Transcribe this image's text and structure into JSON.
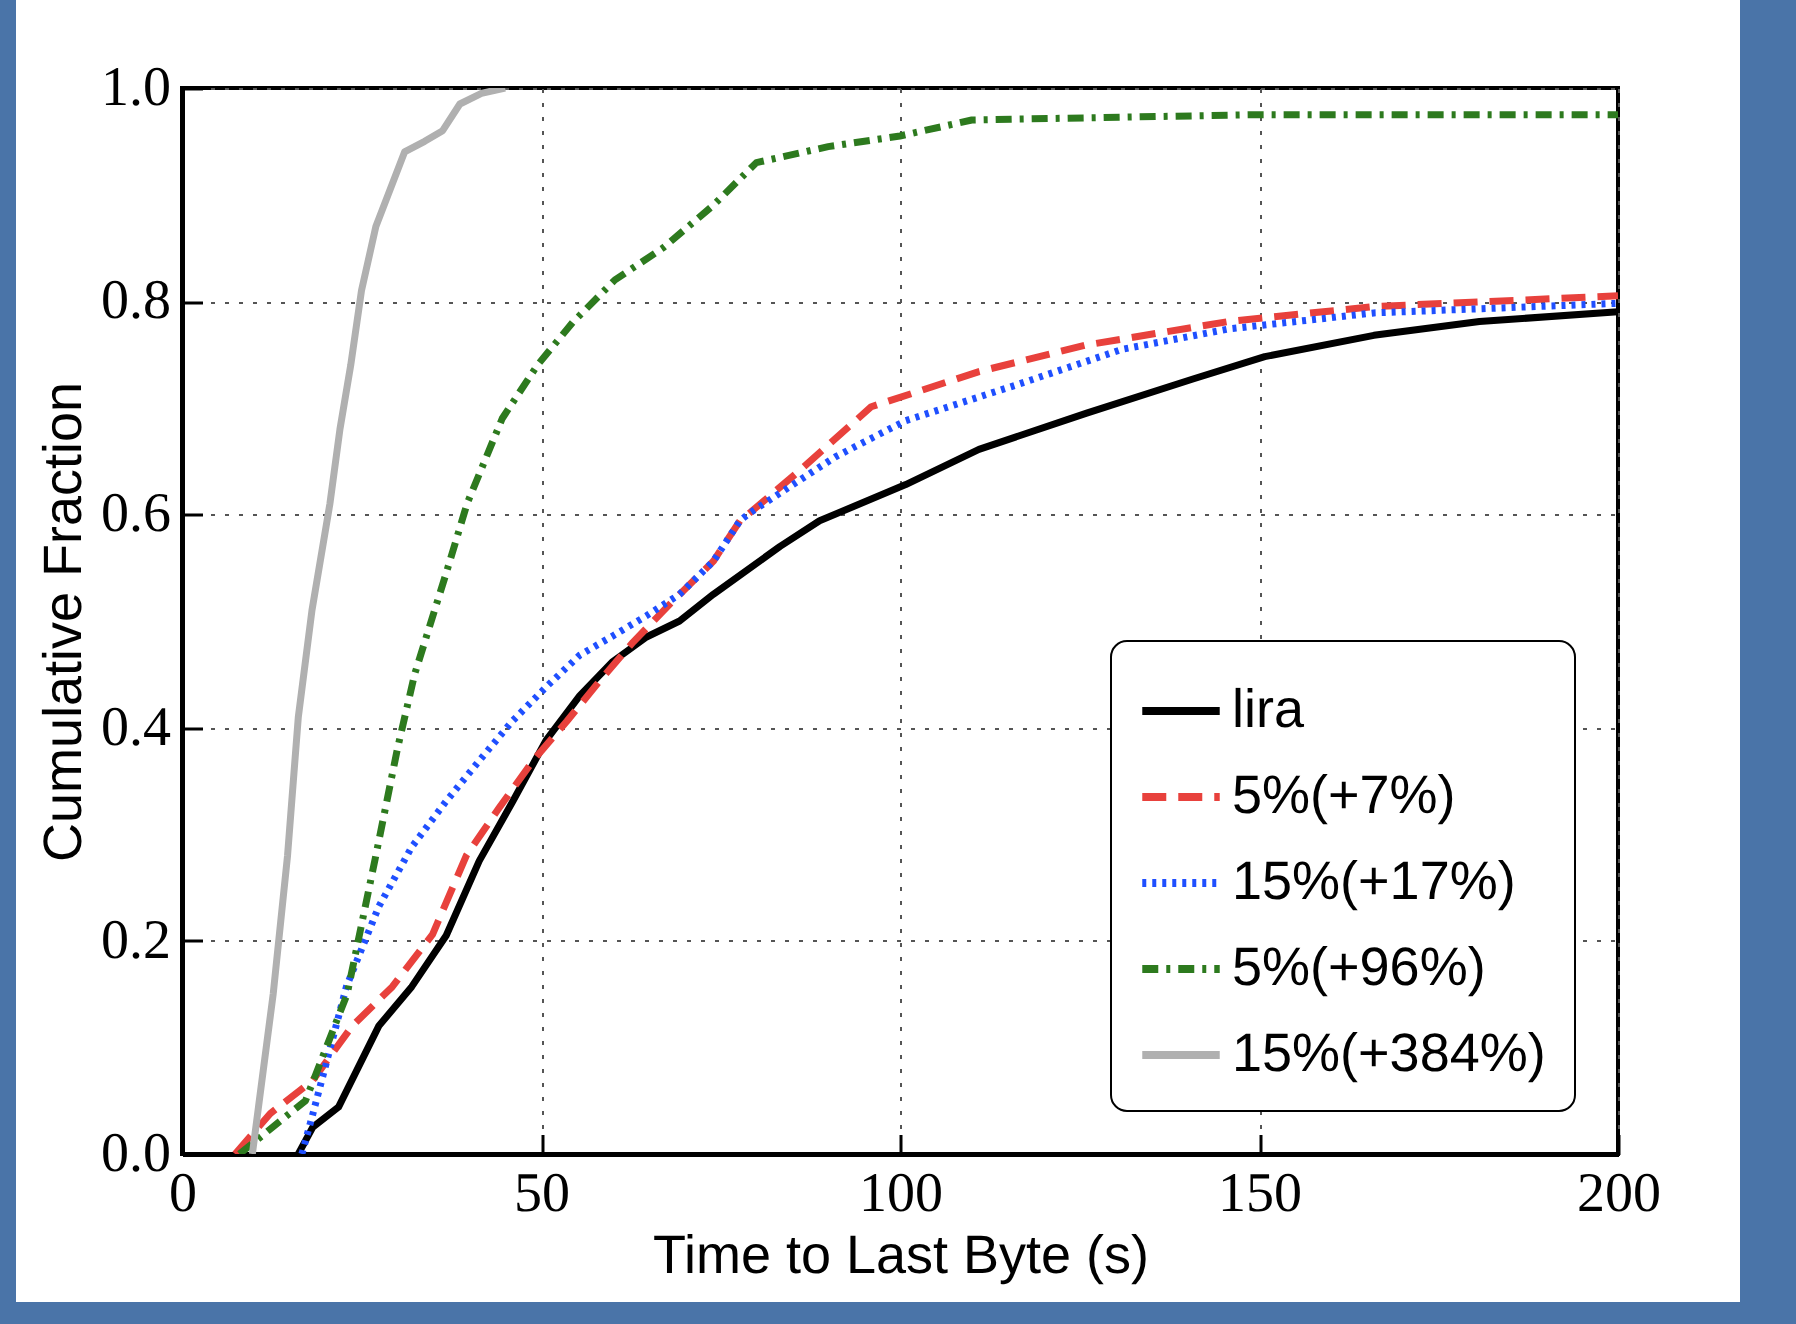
{
  "chart_data": {
    "type": "line",
    "xlabel": "Time to Last Byte (s)",
    "ylabel": "Cumulative Fraction",
    "xlim": [
      0,
      200
    ],
    "ylim": [
      0,
      1
    ],
    "xticks": [
      0,
      50,
      100,
      150,
      200
    ],
    "yticks": [
      {
        "value": 0,
        "label": "0.0"
      },
      {
        "value": 0.2,
        "label": "0.2"
      },
      {
        "value": 0.4,
        "label": "0.4"
      },
      {
        "value": 0.6,
        "label": "0.6"
      },
      {
        "value": 0.8,
        "label": "0.8"
      },
      {
        "value": 1,
        "label": "1.0"
      }
    ],
    "grid": true,
    "legend": "bottom right",
    "series": [
      {
        "name": "lira",
        "color": "#000000",
        "line_style": "solid",
        "x": [
          16.2,
          18.2,
          21.8,
          27.4,
          32,
          36.8,
          41.4,
          46,
          50.7,
          55.4,
          60,
          64.7,
          69.3,
          74,
          83.3,
          88.8,
          100.8,
          111,
          126,
          140.8,
          150.8,
          166,
          180.7,
          200
        ],
        "values": [
          0,
          0.025,
          0.044,
          0.12,
          0.157,
          0.205,
          0.275,
          0.33,
          0.388,
          0.43,
          0.462,
          0.485,
          0.5,
          0.525,
          0.57,
          0.594,
          0.628,
          0.661,
          0.695,
          0.727,
          0.748,
          0.768,
          0.781,
          0.79
        ]
      },
      {
        "name": "5%(+7%)",
        "color": "#e8413c",
        "line_style": "dashed",
        "x": [
          7.4,
          12.3,
          18.2,
          23.7,
          29.3,
          34.9,
          39.6,
          44.2,
          48.9,
          53.6,
          58.2,
          62.8,
          68.4,
          74,
          77.7,
          79,
          86,
          96,
          111,
          126,
          145.8,
          166,
          200
        ],
        "values": [
          0,
          0.038,
          0.069,
          0.12,
          0.157,
          0.206,
          0.28,
          0.325,
          0.369,
          0.406,
          0.444,
          0.48,
          0.519,
          0.556,
          0.594,
          0.601,
          0.641,
          0.701,
          0.734,
          0.759,
          0.781,
          0.795,
          0.805
        ]
      },
      {
        "name": "15%(+17%)",
        "color": "#1f4fff",
        "line_style": "dotted",
        "x": [
          16.7,
          18.2,
          22.9,
          27.4,
          32,
          36.8,
          41.4,
          46,
          50.7,
          55.4,
          60,
          64.7,
          69.3,
          74,
          77.7,
          79,
          91,
          100.8,
          116,
          131,
          145.8,
          166,
          200
        ],
        "values": [
          0,
          0.037,
          0.157,
          0.232,
          0.288,
          0.331,
          0.369,
          0.406,
          0.438,
          0.468,
          0.486,
          0.505,
          0.525,
          0.556,
          0.594,
          0.601,
          0.654,
          0.688,
          0.721,
          0.755,
          0.774,
          0.789,
          0.798
        ]
      },
      {
        "name": "5%(+96%)",
        "color": "#2d7a1e",
        "line_style": "dashdot",
        "x": [
          8,
          17.2,
          23,
          27,
          30,
          32.4,
          36.8,
          39.7,
          44.6,
          49.5,
          54.4,
          60.3,
          67,
          74,
          80,
          90,
          100,
          110,
          150,
          200
        ],
        "values": [
          0,
          0.05,
          0.15,
          0.28,
          0.38,
          0.45,
          0.545,
          0.61,
          0.69,
          0.74,
          0.78,
          0.82,
          0.85,
          0.89,
          0.93,
          0.945,
          0.955,
          0.97,
          0.975,
          0.975
        ]
      },
      {
        "name": "15%(+384%)",
        "color": "#b0b0b0",
        "line_style": "solid",
        "x": [
          9.8,
          12.7,
          14.7,
          16.2,
          18.1,
          20.6,
          22,
          23.5,
          25,
          27,
          31,
          33.8,
          36.3,
          38.7,
          41.7,
          45
        ],
        "values": [
          0,
          0.15,
          0.28,
          0.41,
          0.51,
          0.61,
          0.68,
          0.74,
          0.81,
          0.87,
          0.94,
          0.95,
          0.96,
          0.985,
          0.995,
          1
        ]
      }
    ]
  }
}
